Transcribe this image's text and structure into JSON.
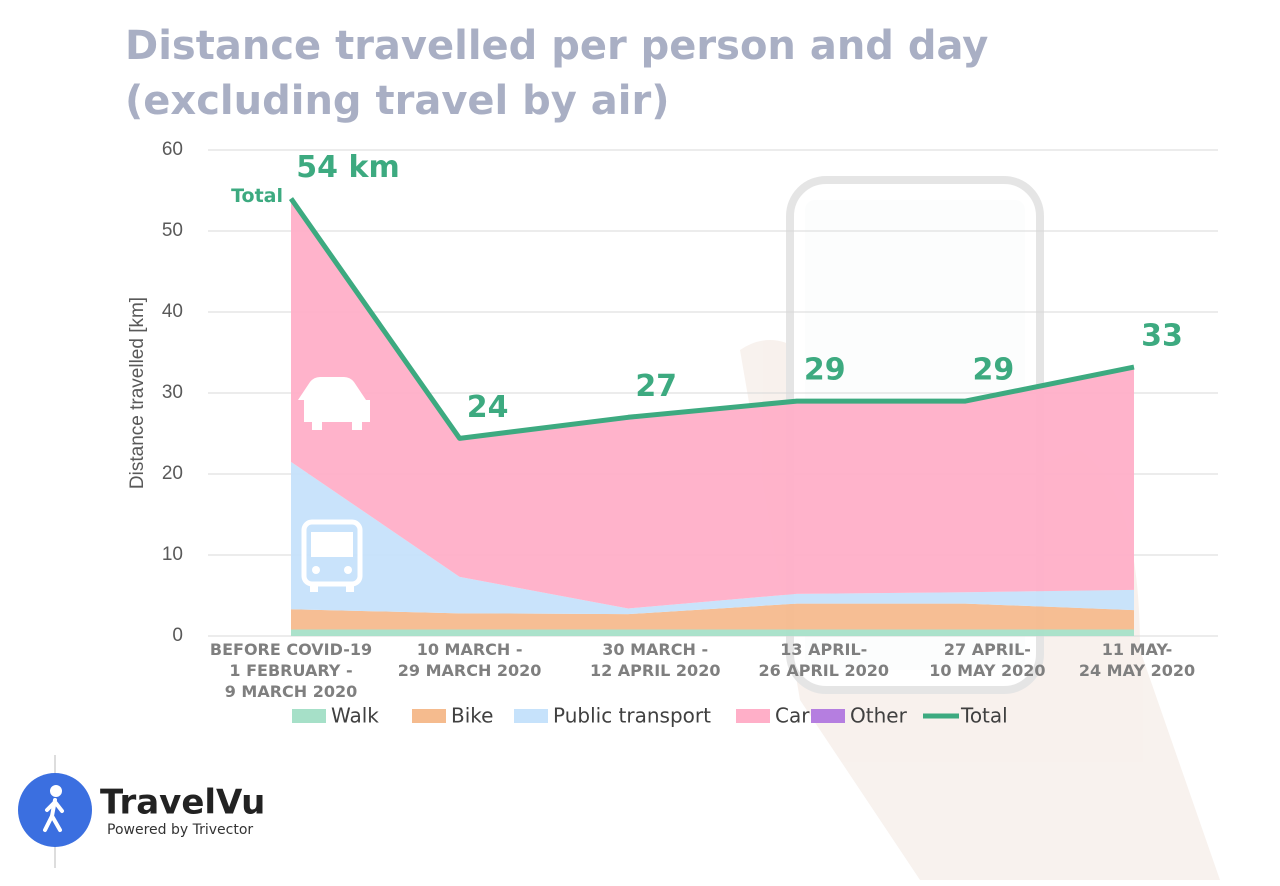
{
  "chart_data": {
    "type": "stacked-area",
    "title": [
      "Distance travelled per person and day",
      "(excluding travel by air)"
    ],
    "y_label": "Distance travelled  [km]",
    "categories": [
      [
        "BEFORE COVID-19",
        "1 FEBRUARY -",
        "9 MARCH 2020"
      ],
      [
        "10 MARCH -",
        "29 MARCH 2020"
      ],
      [
        "30 MARCH -",
        "12 APRIL 2020"
      ],
      [
        "13 APRIL-",
        "26 APRIL 2020"
      ],
      [
        "27 APRIL-",
        "10 MAY 2020"
      ],
      [
        "11 MAY-",
        "24 MAY 2020"
      ]
    ],
    "series": [
      {
        "name": "Walk",
        "color": "#a6e0c8",
        "values": [
          0.8,
          0.8,
          0.8,
          0.8,
          0.8,
          0.8
        ]
      },
      {
        "name": "Bike",
        "color": "#f5bb8e",
        "values": [
          2.5,
          2.0,
          1.9,
          3.2,
          3.2,
          2.4
        ]
      },
      {
        "name": "Public transport",
        "color": "#c6e2fb",
        "values": [
          18.2,
          4.5,
          0.7,
          1.2,
          1.4,
          2.5
        ]
      },
      {
        "name": "Car",
        "color": "#ffafc8",
        "values": [
          32.4,
          17.0,
          23.3,
          23.6,
          23.4,
          27.4
        ]
      },
      {
        "name": "Other",
        "color": "#b57ee0",
        "values": [
          0.1,
          0.1,
          0.3,
          0.1,
          0.1,
          0.1
        ]
      },
      {
        "name": "Total",
        "color": "#3daa80",
        "type": "line",
        "values": [
          54,
          24.4,
          27,
          29,
          29,
          33.2
        ],
        "value_labels": [
          "54 km",
          "24",
          "27",
          "29",
          "29",
          "33"
        ]
      }
    ],
    "line_annotation": "Total",
    "ylim": [
      0,
      60
    ],
    "yticks": [
      0,
      10,
      20,
      30,
      40,
      50,
      60
    ],
    "grid": true,
    "legend": "bottom"
  },
  "logo": {
    "name": "TravelVu",
    "tagline": "Powered by Trivector"
  }
}
